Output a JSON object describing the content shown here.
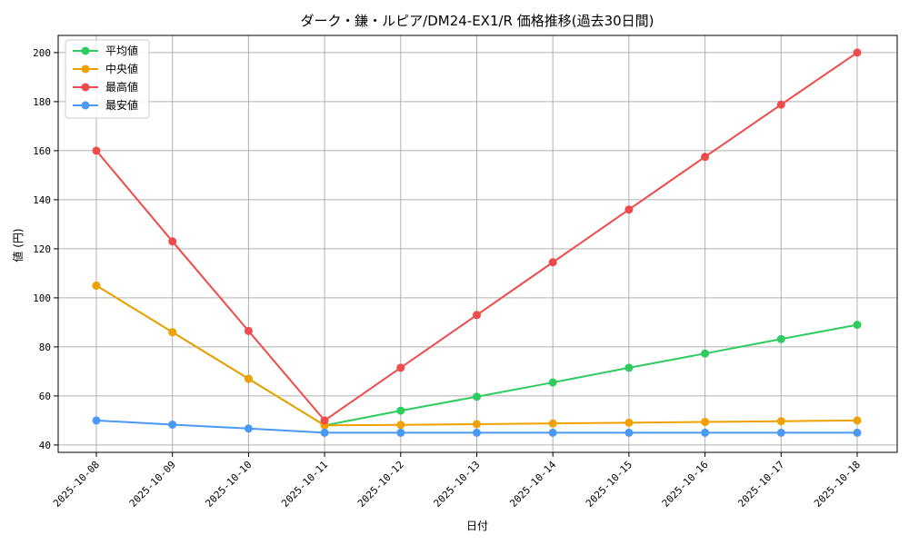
{
  "chart_data": {
    "type": "line",
    "title": "ダーク・鎌・ルピア/DM24-EX1/R 価格推移(過去30日間)",
    "xlabel": "日付",
    "ylabel": "値 (円)",
    "categories": [
      "2025-10-08",
      "2025-10-09",
      "2025-10-10",
      "2025-10-11",
      "2025-10-12",
      "2025-10-13",
      "2025-10-14",
      "2025-10-15",
      "2025-10-16",
      "2025-10-17",
      "2025-10-18"
    ],
    "ylim": [
      37,
      207
    ],
    "yticks": [
      40,
      60,
      80,
      100,
      120,
      140,
      160,
      180,
      200
    ],
    "grid": true,
    "legend_position": "top-left",
    "series": [
      {
        "name": "平均値",
        "color": "#2ecc5f",
        "values": [
          105,
          86,
          67,
          48,
          54,
          59.7,
          65.5,
          71.5,
          77.3,
          83.2,
          89
        ]
      },
      {
        "name": "中央値",
        "color": "#f0a000",
        "values": [
          105,
          86,
          67,
          48,
          48.2,
          48.5,
          48.8,
          49.1,
          49.4,
          49.7,
          50
        ]
      },
      {
        "name": "最高値",
        "color": "#f04a4a",
        "values": [
          160,
          123,
          86.5,
          50,
          71.5,
          93,
          114.5,
          136,
          157.5,
          178.8,
          200
        ]
      },
      {
        "name": "最安値",
        "color": "#4a9af5",
        "values": [
          50,
          48.3,
          46.7,
          45,
          45,
          45,
          45,
          45,
          45,
          45,
          45
        ]
      }
    ]
  }
}
